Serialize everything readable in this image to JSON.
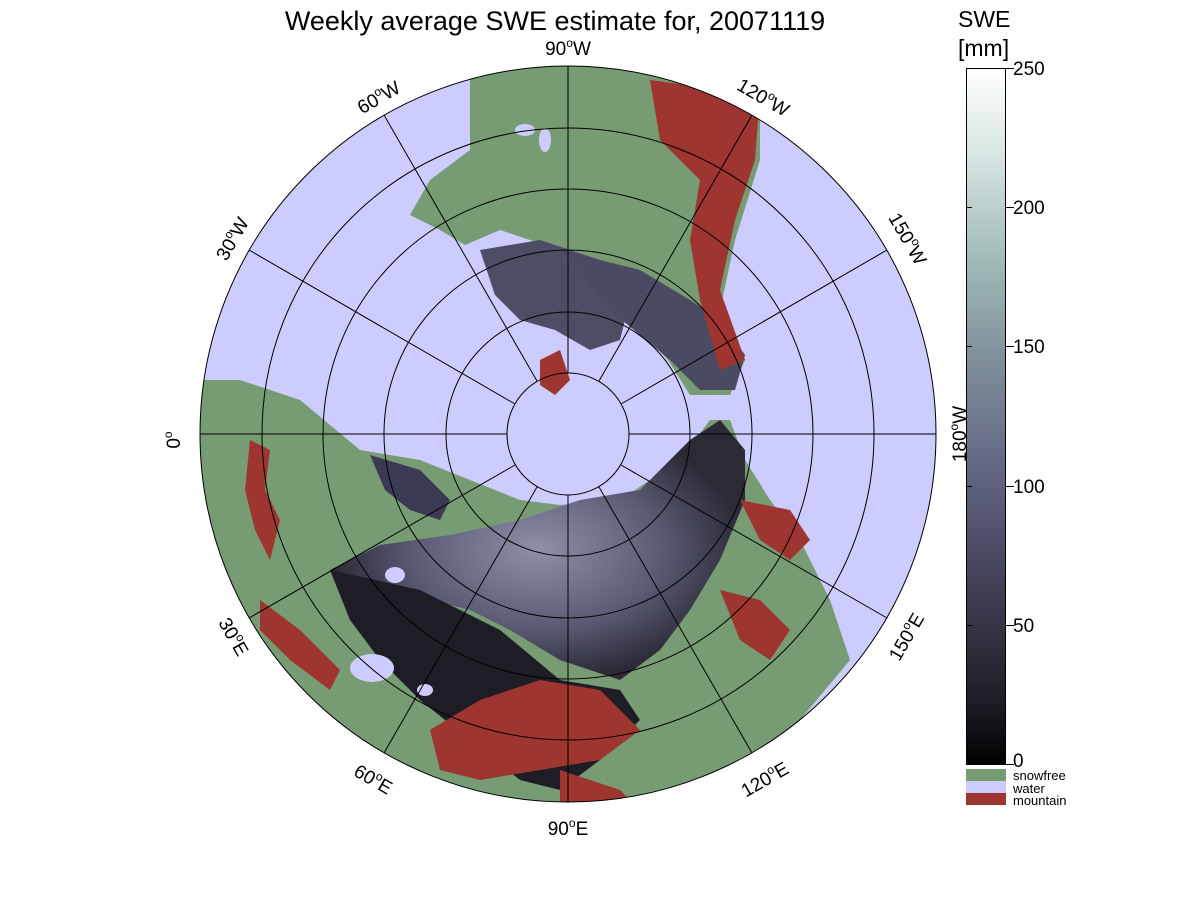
{
  "title": "Weekly average SWE estimate for, 20071119",
  "colorbar": {
    "title_line1": "SWE",
    "title_line2": "[mm]",
    "ticks": [
      "250",
      "200",
      "150",
      "100",
      "50",
      "0"
    ],
    "categories": [
      {
        "label": "snowfree",
        "color": "#779b72"
      },
      {
        "label": "water",
        "color": "#ccccff"
      },
      {
        "label": "mountain",
        "color": "#9e3531"
      }
    ]
  },
  "map": {
    "projection": "north-polar stereographic",
    "ocean_color": "#ccccff",
    "land_color": "#779b72",
    "mountain_color": "#9e3531",
    "snow_color": "#4e4e68",
    "longitude_labels": {
      "w90": {
        "deg": "90",
        "suffix": "W"
      },
      "w60": {
        "deg": "60",
        "suffix": "W"
      },
      "w120": {
        "deg": "120",
        "suffix": "W"
      },
      "w30": {
        "deg": "30",
        "suffix": "W"
      },
      "w150": {
        "deg": "150",
        "suffix": "W"
      },
      "zero": {
        "deg": "0",
        "suffix": ""
      },
      "w180": {
        "deg": "180",
        "suffix": "W"
      },
      "e30": {
        "deg": "30",
        "suffix": "E"
      },
      "e150": {
        "deg": "150",
        "suffix": "E"
      },
      "e60": {
        "deg": "60",
        "suffix": "E"
      },
      "e120": {
        "deg": "120",
        "suffix": "E"
      },
      "e90": {
        "deg": "90",
        "suffix": "E"
      }
    }
  }
}
